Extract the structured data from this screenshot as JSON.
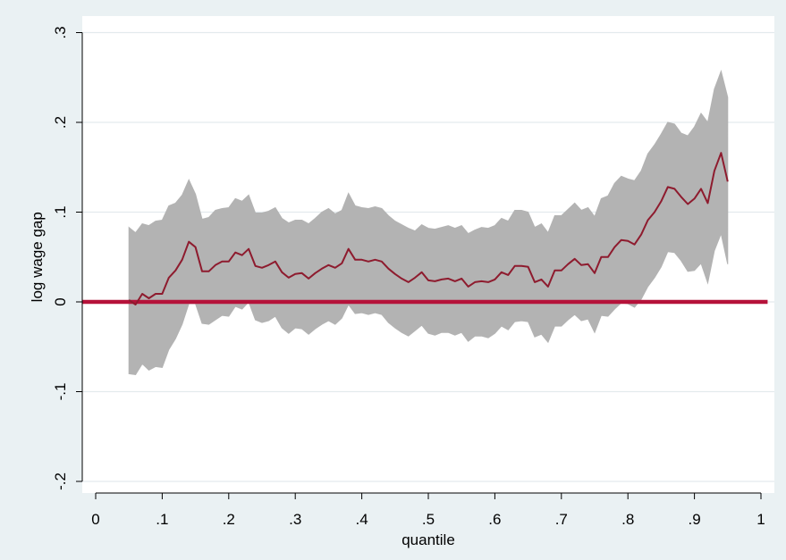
{
  "chart_data": {
    "type": "area",
    "xlabel": "quantile",
    "ylabel": "log wage gap",
    "xlim": [
      -0.02,
      1.01
    ],
    "ylim": [
      -0.21,
      0.305
    ],
    "x_ticks": [
      0,
      0.1,
      0.2,
      0.3,
      0.4,
      0.5,
      0.6,
      0.7,
      0.8,
      0.9,
      1
    ],
    "x_tick_labels": [
      "0",
      ".1",
      ".2",
      ".3",
      ".4",
      ".5",
      ".6",
      ".7",
      ".8",
      ".9",
      "1"
    ],
    "y_ticks": [
      -0.2,
      -0.1,
      0,
      0.1,
      0.2,
      0.3
    ],
    "y_tick_labels": [
      "-.2",
      "-.1",
      "0",
      ".1",
      ".2",
      ".3"
    ],
    "grid": true,
    "legend": "none",
    "reference_line": {
      "y": 0,
      "x_range": [
        -0.02,
        1.01
      ],
      "color": "#b5123a"
    },
    "colors": {
      "band": "#b3b3b3",
      "estimate": "#8e1b2e",
      "outer_background": "#eaf1f3",
      "plot_background": "#ffffff",
      "grid": "#e3eaed"
    },
    "x": [
      0.05,
      0.06,
      0.07,
      0.08,
      0.09,
      0.1,
      0.11,
      0.12,
      0.13,
      0.14,
      0.15,
      0.16,
      0.17,
      0.18,
      0.19,
      0.2,
      0.21,
      0.22,
      0.23,
      0.24,
      0.25,
      0.26,
      0.27,
      0.28,
      0.29,
      0.3,
      0.31,
      0.32,
      0.33,
      0.34,
      0.35,
      0.36,
      0.37,
      0.38,
      0.39,
      0.4,
      0.41,
      0.42,
      0.43,
      0.44,
      0.45,
      0.46,
      0.47,
      0.48,
      0.49,
      0.5,
      0.51,
      0.52,
      0.53,
      0.54,
      0.55,
      0.56,
      0.57,
      0.58,
      0.59,
      0.6,
      0.61,
      0.62,
      0.63,
      0.64,
      0.65,
      0.66,
      0.67,
      0.68,
      0.69,
      0.7,
      0.71,
      0.72,
      0.73,
      0.74,
      0.75,
      0.76,
      0.77,
      0.78,
      0.79,
      0.8,
      0.81,
      0.82,
      0.83,
      0.84,
      0.85,
      0.86,
      0.87,
      0.88,
      0.89,
      0.9,
      0.91,
      0.92,
      0.93,
      0.94,
      0.95
    ],
    "series": [
      {
        "role": "estimate",
        "values": [
          0.002,
          -0.003,
          0.009,
          0.004,
          0.009,
          0.009,
          0.027,
          0.035,
          0.047,
          0.067,
          0.061,
          0.034,
          0.034,
          0.041,
          0.045,
          0.045,
          0.055,
          0.052,
          0.059,
          0.04,
          0.038,
          0.041,
          0.045,
          0.033,
          0.027,
          0.031,
          0.032,
          0.026,
          0.032,
          0.037,
          0.041,
          0.038,
          0.043,
          0.059,
          0.047,
          0.047,
          0.045,
          0.047,
          0.045,
          0.037,
          0.031,
          0.026,
          0.022,
          0.027,
          0.033,
          0.024,
          0.023,
          0.025,
          0.026,
          0.023,
          0.026,
          0.017,
          0.022,
          0.023,
          0.022,
          0.025,
          0.033,
          0.03,
          0.04,
          0.04,
          0.039,
          0.022,
          0.025,
          0.017,
          0.035,
          0.035,
          0.042,
          0.048,
          0.041,
          0.042,
          0.032,
          0.05,
          0.05,
          0.061,
          0.069,
          0.068,
          0.064,
          0.075,
          0.091,
          0.1,
          0.112,
          0.128,
          0.126,
          0.117,
          0.109,
          0.115,
          0.126,
          0.11,
          0.146,
          0.166,
          0.134
        ]
      },
      {
        "role": "upper",
        "values": [
          0.083,
          0.077,
          0.087,
          0.085,
          0.09,
          0.091,
          0.107,
          0.11,
          0.119,
          0.136,
          0.12,
          0.092,
          0.094,
          0.102,
          0.104,
          0.105,
          0.115,
          0.112,
          0.119,
          0.099,
          0.099,
          0.101,
          0.105,
          0.093,
          0.088,
          0.091,
          0.091,
          0.087,
          0.093,
          0.1,
          0.104,
          0.098,
          0.102,
          0.121,
          0.107,
          0.105,
          0.104,
          0.106,
          0.104,
          0.096,
          0.09,
          0.086,
          0.082,
          0.079,
          0.086,
          0.082,
          0.081,
          0.083,
          0.085,
          0.082,
          0.085,
          0.076,
          0.08,
          0.083,
          0.082,
          0.085,
          0.093,
          0.09,
          0.102,
          0.102,
          0.1,
          0.083,
          0.087,
          0.077,
          0.096,
          0.096,
          0.103,
          0.11,
          0.102,
          0.105,
          0.095,
          0.115,
          0.118,
          0.132,
          0.14,
          0.137,
          0.135,
          0.146,
          0.165,
          0.175,
          0.187,
          0.2,
          0.198,
          0.188,
          0.185,
          0.195,
          0.21,
          0.2,
          0.237,
          0.257,
          0.228
        ]
      },
      {
        "role": "lower",
        "values": [
          -0.08,
          -0.081,
          -0.069,
          -0.076,
          -0.072,
          -0.073,
          -0.053,
          -0.041,
          -0.025,
          -0.002,
          -0.002,
          -0.024,
          -0.025,
          -0.02,
          -0.015,
          -0.016,
          -0.005,
          -0.008,
          0.0,
          -0.02,
          -0.023,
          -0.021,
          -0.016,
          -0.029,
          -0.035,
          -0.029,
          -0.03,
          -0.036,
          -0.03,
          -0.025,
          -0.021,
          -0.025,
          -0.018,
          -0.003,
          -0.013,
          -0.012,
          -0.014,
          -0.012,
          -0.014,
          -0.023,
          -0.029,
          -0.034,
          -0.038,
          -0.032,
          -0.026,
          -0.035,
          -0.037,
          -0.034,
          -0.034,
          -0.037,
          -0.034,
          -0.044,
          -0.038,
          -0.038,
          -0.04,
          -0.035,
          -0.027,
          -0.031,
          -0.022,
          -0.021,
          -0.022,
          -0.039,
          -0.036,
          -0.045,
          -0.027,
          -0.027,
          -0.02,
          -0.014,
          -0.021,
          -0.019,
          -0.034,
          -0.015,
          -0.016,
          -0.008,
          -0.001,
          -0.002,
          -0.006,
          0.003,
          0.017,
          0.027,
          0.039,
          0.056,
          0.055,
          0.046,
          0.034,
          0.035,
          0.043,
          0.021,
          0.057,
          0.076,
          0.042
        ]
      }
    ]
  }
}
